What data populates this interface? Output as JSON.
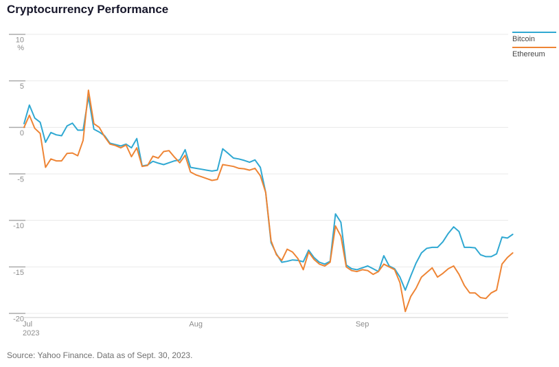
{
  "page": {
    "title": "Cryptocurrency Performance",
    "source_note": "Source: Yahoo Finance. Data as of Sept. 30, 2023."
  },
  "legend": [
    {
      "label": "Bitcoin",
      "color": "#2fa8d2"
    },
    {
      "label": "Ethereum",
      "color": "#ee8434"
    }
  ],
  "chart_data": {
    "type": "line",
    "title": "Cryptocurrency Performance",
    "unit": "%",
    "ylim": [
      -20,
      10
    ],
    "y_ticks": [
      10,
      5,
      0,
      -5,
      -10,
      -15,
      -20
    ],
    "grid": true,
    "legend_position": "top-right",
    "x_range": "Jul 1, 2023 - Sep 30, 2023",
    "x_labels": [
      {
        "label": "Jul",
        "year": "2023",
        "index": 0
      },
      {
        "label": "Aug",
        "year": "",
        "index": 31
      },
      {
        "label": "Sep",
        "year": "",
        "index": 62
      }
    ],
    "axis_colors": {
      "gridline": "#e9e9e9",
      "axis_line": "#cccccc",
      "tick": "#ababab",
      "label": "#8c8c8c"
    },
    "series": [
      {
        "name": "Bitcoin",
        "color": "#2fa8d2",
        "values": [
          0.4,
          2.4,
          1.0,
          0.55,
          -1.6,
          -0.55,
          -0.8,
          -0.9,
          0.15,
          0.45,
          -0.3,
          -0.3,
          3.3,
          -0.2,
          -0.5,
          -0.9,
          -1.7,
          -1.85,
          -2.0,
          -1.8,
          -2.2,
          -1.2,
          -4.15,
          -4.05,
          -3.65,
          -3.85,
          -4.0,
          -3.8,
          -3.6,
          -3.5,
          -2.4,
          -4.3,
          -4.4,
          -4.5,
          -4.6,
          -4.7,
          -4.6,
          -2.3,
          -2.8,
          -3.3,
          -3.4,
          -3.55,
          -3.75,
          -3.5,
          -4.3,
          -7.0,
          -12.4,
          -13.6,
          -14.5,
          -14.4,
          -14.25,
          -14.3,
          -14.45,
          -13.2,
          -14.0,
          -14.5,
          -14.7,
          -14.4,
          -9.3,
          -10.2,
          -14.8,
          -15.2,
          -15.3,
          -15.1,
          -14.9,
          -15.2,
          -15.5,
          -13.8,
          -14.9,
          -15.2,
          -16.1,
          -17.5,
          -16.0,
          -14.6,
          -13.5,
          -13.0,
          -12.9,
          -12.9,
          -12.3,
          -11.4,
          -10.7,
          -11.2,
          -12.9,
          -12.9,
          -12.95,
          -13.7,
          -13.9,
          -13.9,
          -13.6,
          -11.8,
          -11.9,
          -11.5
        ]
      },
      {
        "name": "Ethereum",
        "color": "#ee8434",
        "values": [
          0.0,
          1.3,
          -0.1,
          -0.65,
          -4.3,
          -3.4,
          -3.6,
          -3.6,
          -2.8,
          -2.75,
          -3.05,
          -1.4,
          4.0,
          0.4,
          0.0,
          -1.0,
          -1.8,
          -1.95,
          -2.2,
          -1.9,
          -3.15,
          -2.2,
          -4.2,
          -4.1,
          -3.1,
          -3.3,
          -2.6,
          -2.5,
          -3.2,
          -3.8,
          -3.0,
          -4.8,
          -5.1,
          -5.3,
          -5.5,
          -5.7,
          -5.6,
          -4.0,
          -4.1,
          -4.2,
          -4.4,
          -4.45,
          -4.6,
          -4.4,
          -5.2,
          -7.0,
          -12.2,
          -13.7,
          -14.3,
          -13.1,
          -13.4,
          -14.1,
          -15.3,
          -13.4,
          -14.2,
          -14.7,
          -14.9,
          -14.5,
          -10.6,
          -11.7,
          -15.0,
          -15.4,
          -15.5,
          -15.3,
          -15.4,
          -15.8,
          -15.5,
          -14.7,
          -15.0,
          -15.3,
          -16.7,
          -19.8,
          -18.2,
          -17.3,
          -16.1,
          -15.6,
          -15.1,
          -16.1,
          -15.7,
          -15.2,
          -14.9,
          -15.8,
          -17.0,
          -17.8,
          -17.8,
          -18.3,
          -18.4,
          -17.8,
          -17.5,
          -14.7,
          -14.0,
          -13.5
        ]
      }
    ]
  }
}
